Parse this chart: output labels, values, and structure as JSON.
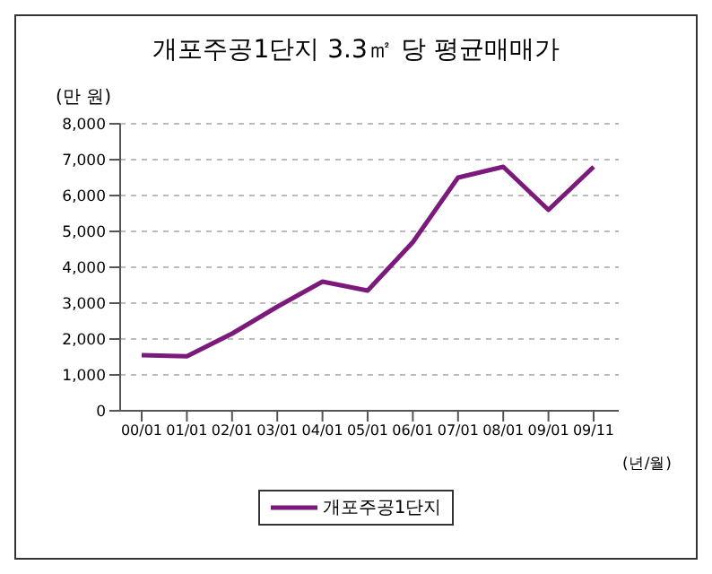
{
  "chart_data": {
    "type": "line",
    "title": "개포주공1단지 3.3㎡ 당 평균매매가",
    "ylabel": "(만 원)",
    "xlabel": "(년/월)",
    "categories": [
      "00/01",
      "01/01",
      "02/01",
      "03/01",
      "04/01",
      "05/01",
      "06/01",
      "07/01",
      "08/01",
      "09/01",
      "09/11"
    ],
    "series": [
      {
        "name": "개포주공1단지",
        "color": "#7b1a7b",
        "values": [
          1550,
          1520,
          2150,
          2900,
          3600,
          3350,
          4700,
          6500,
          6800,
          5600,
          6800
        ]
      }
    ],
    "ylim": [
      0,
      8000
    ],
    "yticks": [
      0,
      {
        "value": 1000,
        "label": "1,000"
      },
      {
        "value": 2000,
        "label": "2,000"
      },
      {
        "value": 3000,
        "label": "3,000"
      },
      {
        "value": 4000,
        "label": "4,000"
      },
      {
        "value": 5000,
        "label": "5,000"
      },
      {
        "value": 6000,
        "label": "6,000"
      },
      {
        "value": 7000,
        "label": "7,000"
      },
      {
        "value": 8000,
        "label": "8,000"
      }
    ],
    "grid": "y",
    "legend": "bottom",
    "marker": "none",
    "line_style": "solid"
  }
}
